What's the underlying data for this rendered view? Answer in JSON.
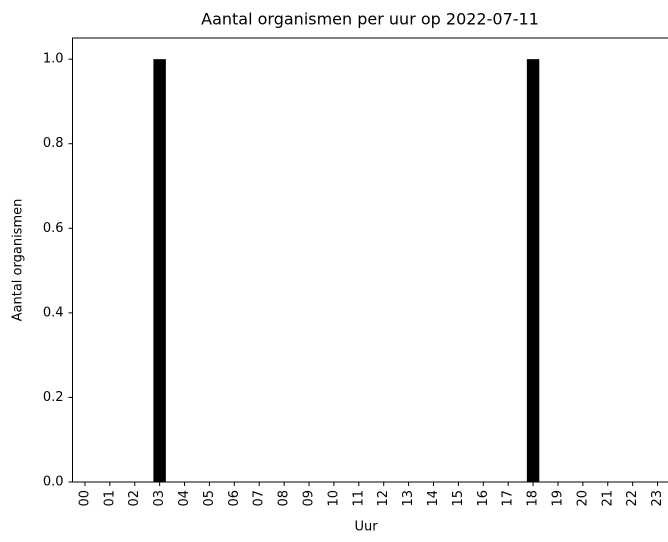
{
  "chart_data": {
    "type": "bar",
    "title": "Aantal organismen per uur op 2022-07-11",
    "x_label": "Uur",
    "y_label": "Aantal organismen",
    "categories": [
      "00",
      "01",
      "02",
      "03",
      "04",
      "05",
      "06",
      "07",
      "08",
      "09",
      "10",
      "11",
      "12",
      "13",
      "14",
      "15",
      "16",
      "17",
      "18",
      "19",
      "20",
      "21",
      "22",
      "23"
    ],
    "values": [
      0,
      0,
      0,
      1,
      0,
      0,
      0,
      0,
      0,
      0,
      0,
      0,
      0,
      0,
      0,
      0,
      0,
      0,
      1,
      0,
      0,
      0,
      0,
      0
    ],
    "color": "#000000",
    "ylim": [
      0,
      1.05
    ],
    "yticks": [
      {
        "value": 0,
        "label": "0.0"
      },
      0.2,
      0.4,
      0.6,
      0.8,
      {
        "value": 1,
        "label": "1.0"
      }
    ],
    "grid": false
  }
}
